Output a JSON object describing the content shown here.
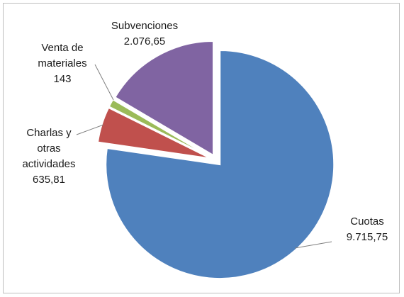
{
  "chart_data": {
    "type": "pie",
    "title": "",
    "start_angle_deg": 0,
    "explode": true,
    "slices": [
      {
        "label": "Cuotas",
        "value": 9715.75,
        "value_text": "9.715,75",
        "color": "#4f81bd",
        "label_lines": [
          "Cuotas",
          "9.715,75"
        ]
      },
      {
        "label": "Charlas y otras actividades",
        "value": 635.81,
        "value_text": "635,81",
        "color": "#c0504d",
        "label_lines": [
          "Charlas y",
          "otras",
          "actividades",
          "635,81"
        ]
      },
      {
        "label": "Venta de materiales",
        "value": 143,
        "value_text": "143",
        "color": "#9bbb59",
        "label_lines": [
          "Venta de",
          "materiales",
          "143"
        ]
      },
      {
        "label": "Subvenciones",
        "value": 2076.65,
        "value_text": "2.076,65",
        "color": "#8064a2",
        "label_lines": [
          "Subvenciones",
          "2.076,65"
        ]
      }
    ],
    "legend": "none"
  }
}
